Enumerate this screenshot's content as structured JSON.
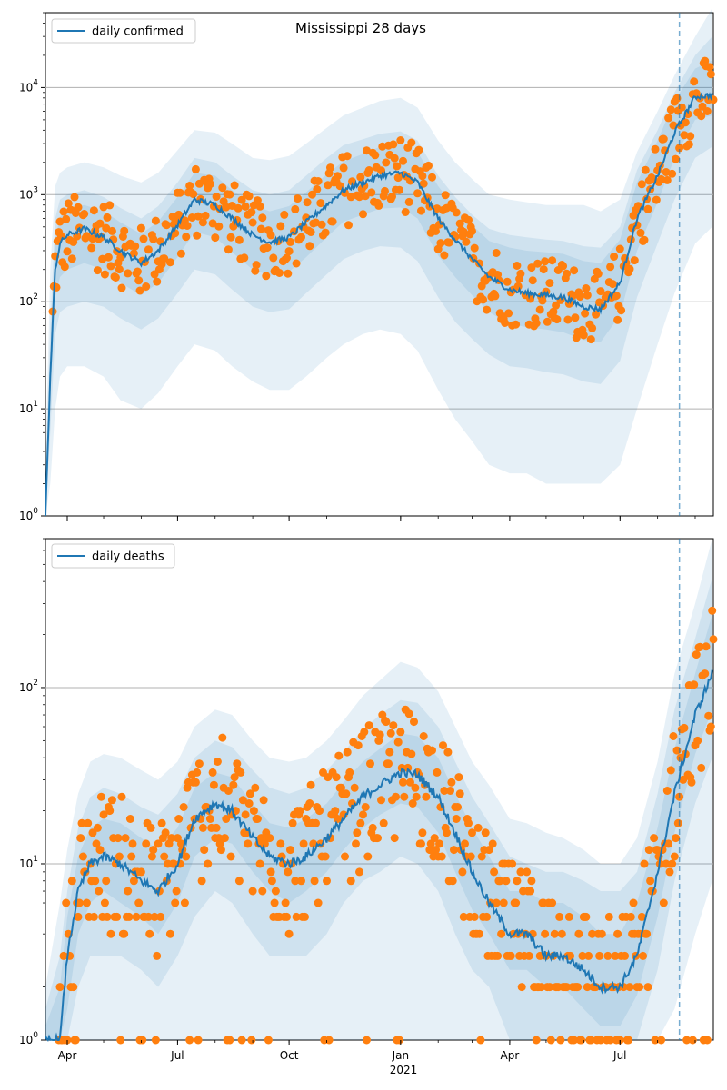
{
  "colors": {
    "line": "#1f77b4",
    "band": "#1f77b4",
    "points": "#ff7f0e",
    "grid": "#b0b0b0",
    "vline": "#1f77b4"
  },
  "x_ticks": [
    "Apr",
    "Jul",
    "Oct",
    "Jan",
    "Apr",
    "Jul"
  ],
  "x_year_label": "2021",
  "chart_data": [
    {
      "type": "line",
      "title": "Mississippi 28 days",
      "legend": "daily confirmed",
      "legend_position": "upper-left",
      "y_scale": "log",
      "ylim": [
        1,
        50000
      ],
      "y_ticks": [
        {
          "value": 1,
          "base": "10",
          "exp": "0"
        },
        {
          "value": 10,
          "base": "10",
          "exp": "1"
        },
        {
          "value": 100,
          "base": "10",
          "exp": "2"
        },
        {
          "value": 1000,
          "base": "10",
          "exp": "3"
        },
        {
          "value": 10000,
          "base": "10",
          "exp": "4"
        }
      ],
      "grid_y": [
        10,
        100,
        1000,
        10000
      ],
      "xlim": [
        "2020-03-14",
        "2021-09-16"
      ],
      "vline": "2021-08-19",
      "line": {
        "x": [
          "2020-03-14",
          "2020-03-18",
          "2020-03-22",
          "2020-03-26",
          "2020-04-01",
          "2020-04-15",
          "2020-05-01",
          "2020-05-15",
          "2020-06-01",
          "2020-06-15",
          "2020-07-01",
          "2020-07-15",
          "2020-08-01",
          "2020-08-15",
          "2020-09-01",
          "2020-09-15",
          "2020-10-01",
          "2020-10-15",
          "2020-11-01",
          "2020-11-15",
          "2020-12-01",
          "2020-12-15",
          "2021-01-01",
          "2021-01-15",
          "2021-02-01",
          "2021-02-15",
          "2021-03-01",
          "2021-03-15",
          "2021-04-01",
          "2021-04-15",
          "2021-05-01",
          "2021-05-15",
          "2021-06-01",
          "2021-06-15",
          "2021-07-01",
          "2021-07-15",
          "2021-08-01",
          "2021-08-15",
          "2021-09-01",
          "2021-09-15"
        ],
        "y": [
          1,
          20,
          200,
          350,
          420,
          480,
          400,
          300,
          230,
          300,
          520,
          900,
          800,
          600,
          420,
          360,
          400,
          550,
          800,
          1100,
          1300,
          1500,
          1600,
          1300,
          600,
          380,
          250,
          170,
          130,
          120,
          115,
          110,
          90,
          85,
          150,
          600,
          1500,
          3800,
          8200,
          8500
        ]
      },
      "bands": [
        {
          "level": "outer",
          "lo": [
            1,
            2,
            10,
            20,
            25,
            25,
            20,
            12,
            10,
            14,
            25,
            40,
            35,
            25,
            18,
            15,
            15,
            20,
            30,
            40,
            50,
            55,
            50,
            35,
            15,
            8,
            5,
            3,
            2.5,
            2.5,
            2,
            2,
            2,
            2,
            3,
            10,
            40,
            120,
            350,
            500
          ],
          "hi": [
            3,
            200,
            1200,
            1600,
            1800,
            2000,
            1800,
            1500,
            1300,
            1600,
            2600,
            4000,
            3800,
            3000,
            2200,
            2100,
            2300,
            3000,
            4200,
            5500,
            6500,
            7500,
            8000,
            6500,
            3200,
            2000,
            1400,
            1000,
            900,
            850,
            800,
            800,
            800,
            700,
            900,
            2500,
            6000,
            13000,
            30000,
            55000
          ]
        },
        {
          "level": "middle",
          "lo": [
            1,
            6,
            50,
            80,
            90,
            100,
            90,
            70,
            55,
            70,
            120,
            200,
            180,
            130,
            90,
            80,
            85,
            120,
            180,
            250,
            300,
            330,
            320,
            240,
            110,
            65,
            45,
            32,
            25,
            24,
            22,
            21,
            18,
            17,
            28,
            110,
            350,
            900,
            2200,
            2800
          ],
          "hi": [
            2,
            60,
            600,
            900,
            1000,
            1100,
            950,
            750,
            600,
            780,
            1300,
            2200,
            2000,
            1500,
            1100,
            1000,
            1100,
            1500,
            2200,
            2900,
            3300,
            3700,
            3900,
            3200,
            1500,
            950,
            650,
            480,
            420,
            400,
            380,
            370,
            330,
            320,
            500,
            1700,
            4000,
            9000,
            20000,
            30000
          ]
        },
        {
          "level": "inner",
          "lo": [
            1,
            12,
            110,
            170,
            200,
            230,
            200,
            150,
            115,
            150,
            260,
            450,
            400,
            290,
            200,
            175,
            190,
            260,
            400,
            560,
            650,
            740,
            760,
            600,
            270,
            170,
            115,
            80,
            62,
            58,
            55,
            52,
            44,
            42,
            75,
            300,
            850,
            2200,
            5000,
            5500
          ],
          "hi": [
            1.5,
            35,
            380,
            620,
            720,
            800,
            700,
            550,
            430,
            560,
            950,
            1600,
            1500,
            1100,
            800,
            700,
            780,
            1050,
            1550,
            2050,
            2400,
            2800,
            3000,
            2500,
            1200,
            750,
            520,
            370,
            320,
            300,
            290,
            280,
            240,
            230,
            380,
            1300,
            3200,
            7500,
            15000,
            18000
          ]
        }
      ],
      "points_note": "orange daily reported counts scattered around the line"
    },
    {
      "type": "line",
      "title": "",
      "legend": "daily deaths",
      "legend_position": "upper-left",
      "y_scale": "log",
      "ylim": [
        1,
        700
      ],
      "y_ticks": [
        {
          "value": 1,
          "base": "10",
          "exp": "0"
        },
        {
          "value": 10,
          "base": "10",
          "exp": "1"
        },
        {
          "value": 100,
          "base": "10",
          "exp": "2"
        }
      ],
      "grid_y": [
        10,
        100
      ],
      "xlim": [
        "2020-03-14",
        "2021-09-16"
      ],
      "vline": "2021-08-19",
      "line": {
        "x": [
          "2020-03-14",
          "2020-03-26",
          "2020-04-01",
          "2020-04-10",
          "2020-04-20",
          "2020-05-01",
          "2020-05-15",
          "2020-06-01",
          "2020-06-15",
          "2020-07-01",
          "2020-07-15",
          "2020-08-01",
          "2020-08-15",
          "2020-09-01",
          "2020-09-15",
          "2020-10-01",
          "2020-10-15",
          "2020-11-01",
          "2020-11-15",
          "2020-12-01",
          "2020-12-15",
          "2021-01-01",
          "2021-01-15",
          "2021-02-01",
          "2021-02-15",
          "2021-03-01",
          "2021-03-15",
          "2021-04-01",
          "2021-04-15",
          "2021-05-01",
          "2021-05-15",
          "2021-06-01",
          "2021-06-15",
          "2021-07-01",
          "2021-07-15",
          "2021-08-01",
          "2021-08-15",
          "2021-09-01",
          "2021-09-15"
        ],
        "y": [
          1,
          1,
          3,
          7,
          10,
          11,
          10,
          8,
          7,
          10,
          18,
          22,
          20,
          14,
          11,
          10,
          11,
          14,
          18,
          24,
          28,
          33,
          32,
          24,
          15,
          9,
          6,
          4,
          4,
          3,
          3,
          2.5,
          2,
          2,
          3,
          9,
          25,
          70,
          120
        ]
      },
      "bands": [
        {
          "level": "outer",
          "lo": [
            1,
            1,
            1,
            1,
            1,
            1,
            1,
            1,
            1,
            1,
            1,
            1,
            1,
            1,
            1,
            1,
            1,
            1,
            1,
            1,
            1,
            1,
            1,
            1,
            1,
            1,
            1,
            1,
            1,
            1,
            1,
            1,
            1,
            1,
            1,
            1,
            1.5,
            4,
            8
          ],
          "hi": [
            2,
            6,
            12,
            25,
            38,
            42,
            40,
            34,
            30,
            38,
            60,
            75,
            70,
            50,
            40,
            38,
            40,
            50,
            65,
            90,
            110,
            140,
            130,
            95,
            60,
            38,
            28,
            18,
            17,
            15,
            14,
            12,
            10,
            10,
            14,
            38,
            120,
            300,
            700
          ]
        },
        {
          "level": "middle",
          "lo": [
            1,
            1,
            1,
            2,
            3,
            3,
            3,
            2.5,
            2,
            3,
            5,
            7,
            6,
            4,
            3,
            3,
            3,
            4,
            6,
            8,
            9,
            11,
            10,
            7,
            4,
            2.5,
            2,
            1,
            1,
            1,
            1,
            1,
            1,
            1,
            1,
            2.5,
            8,
            22,
            40
          ],
          "hi": [
            1.5,
            3,
            7,
            16,
            24,
            27,
            25,
            21,
            19,
            25,
            40,
            50,
            46,
            34,
            27,
            25,
            27,
            34,
            43,
            58,
            70,
            85,
            82,
            60,
            38,
            24,
            17,
            11,
            10,
            9,
            9,
            8,
            7,
            7,
            9,
            25,
            75,
            190,
            420
          ]
        },
        {
          "level": "inner",
          "lo": [
            1,
            1,
            1.5,
            4,
            6,
            7,
            6,
            5,
            4,
            6,
            11,
            14,
            13,
            9,
            7,
            6,
            7,
            9,
            12,
            16,
            19,
            22,
            21,
            15,
            9,
            5.5,
            4,
            2.5,
            2.5,
            2,
            2,
            1.5,
            1.2,
            1.2,
            1.8,
            5,
            15,
            42,
            75
          ],
          "hi": [
            1.2,
            2,
            5,
            11,
            16,
            18,
            17,
            14,
            12,
            16,
            27,
            33,
            31,
            22,
            17,
            16,
            18,
            22,
            29,
            38,
            45,
            55,
            53,
            40,
            25,
            16,
            11,
            7,
            7,
            6,
            6,
            5,
            4,
            4,
            6,
            16,
            45,
            120,
            260
          ]
        }
      ],
      "points_note": "orange daily reported counts scattered around the line"
    }
  ]
}
